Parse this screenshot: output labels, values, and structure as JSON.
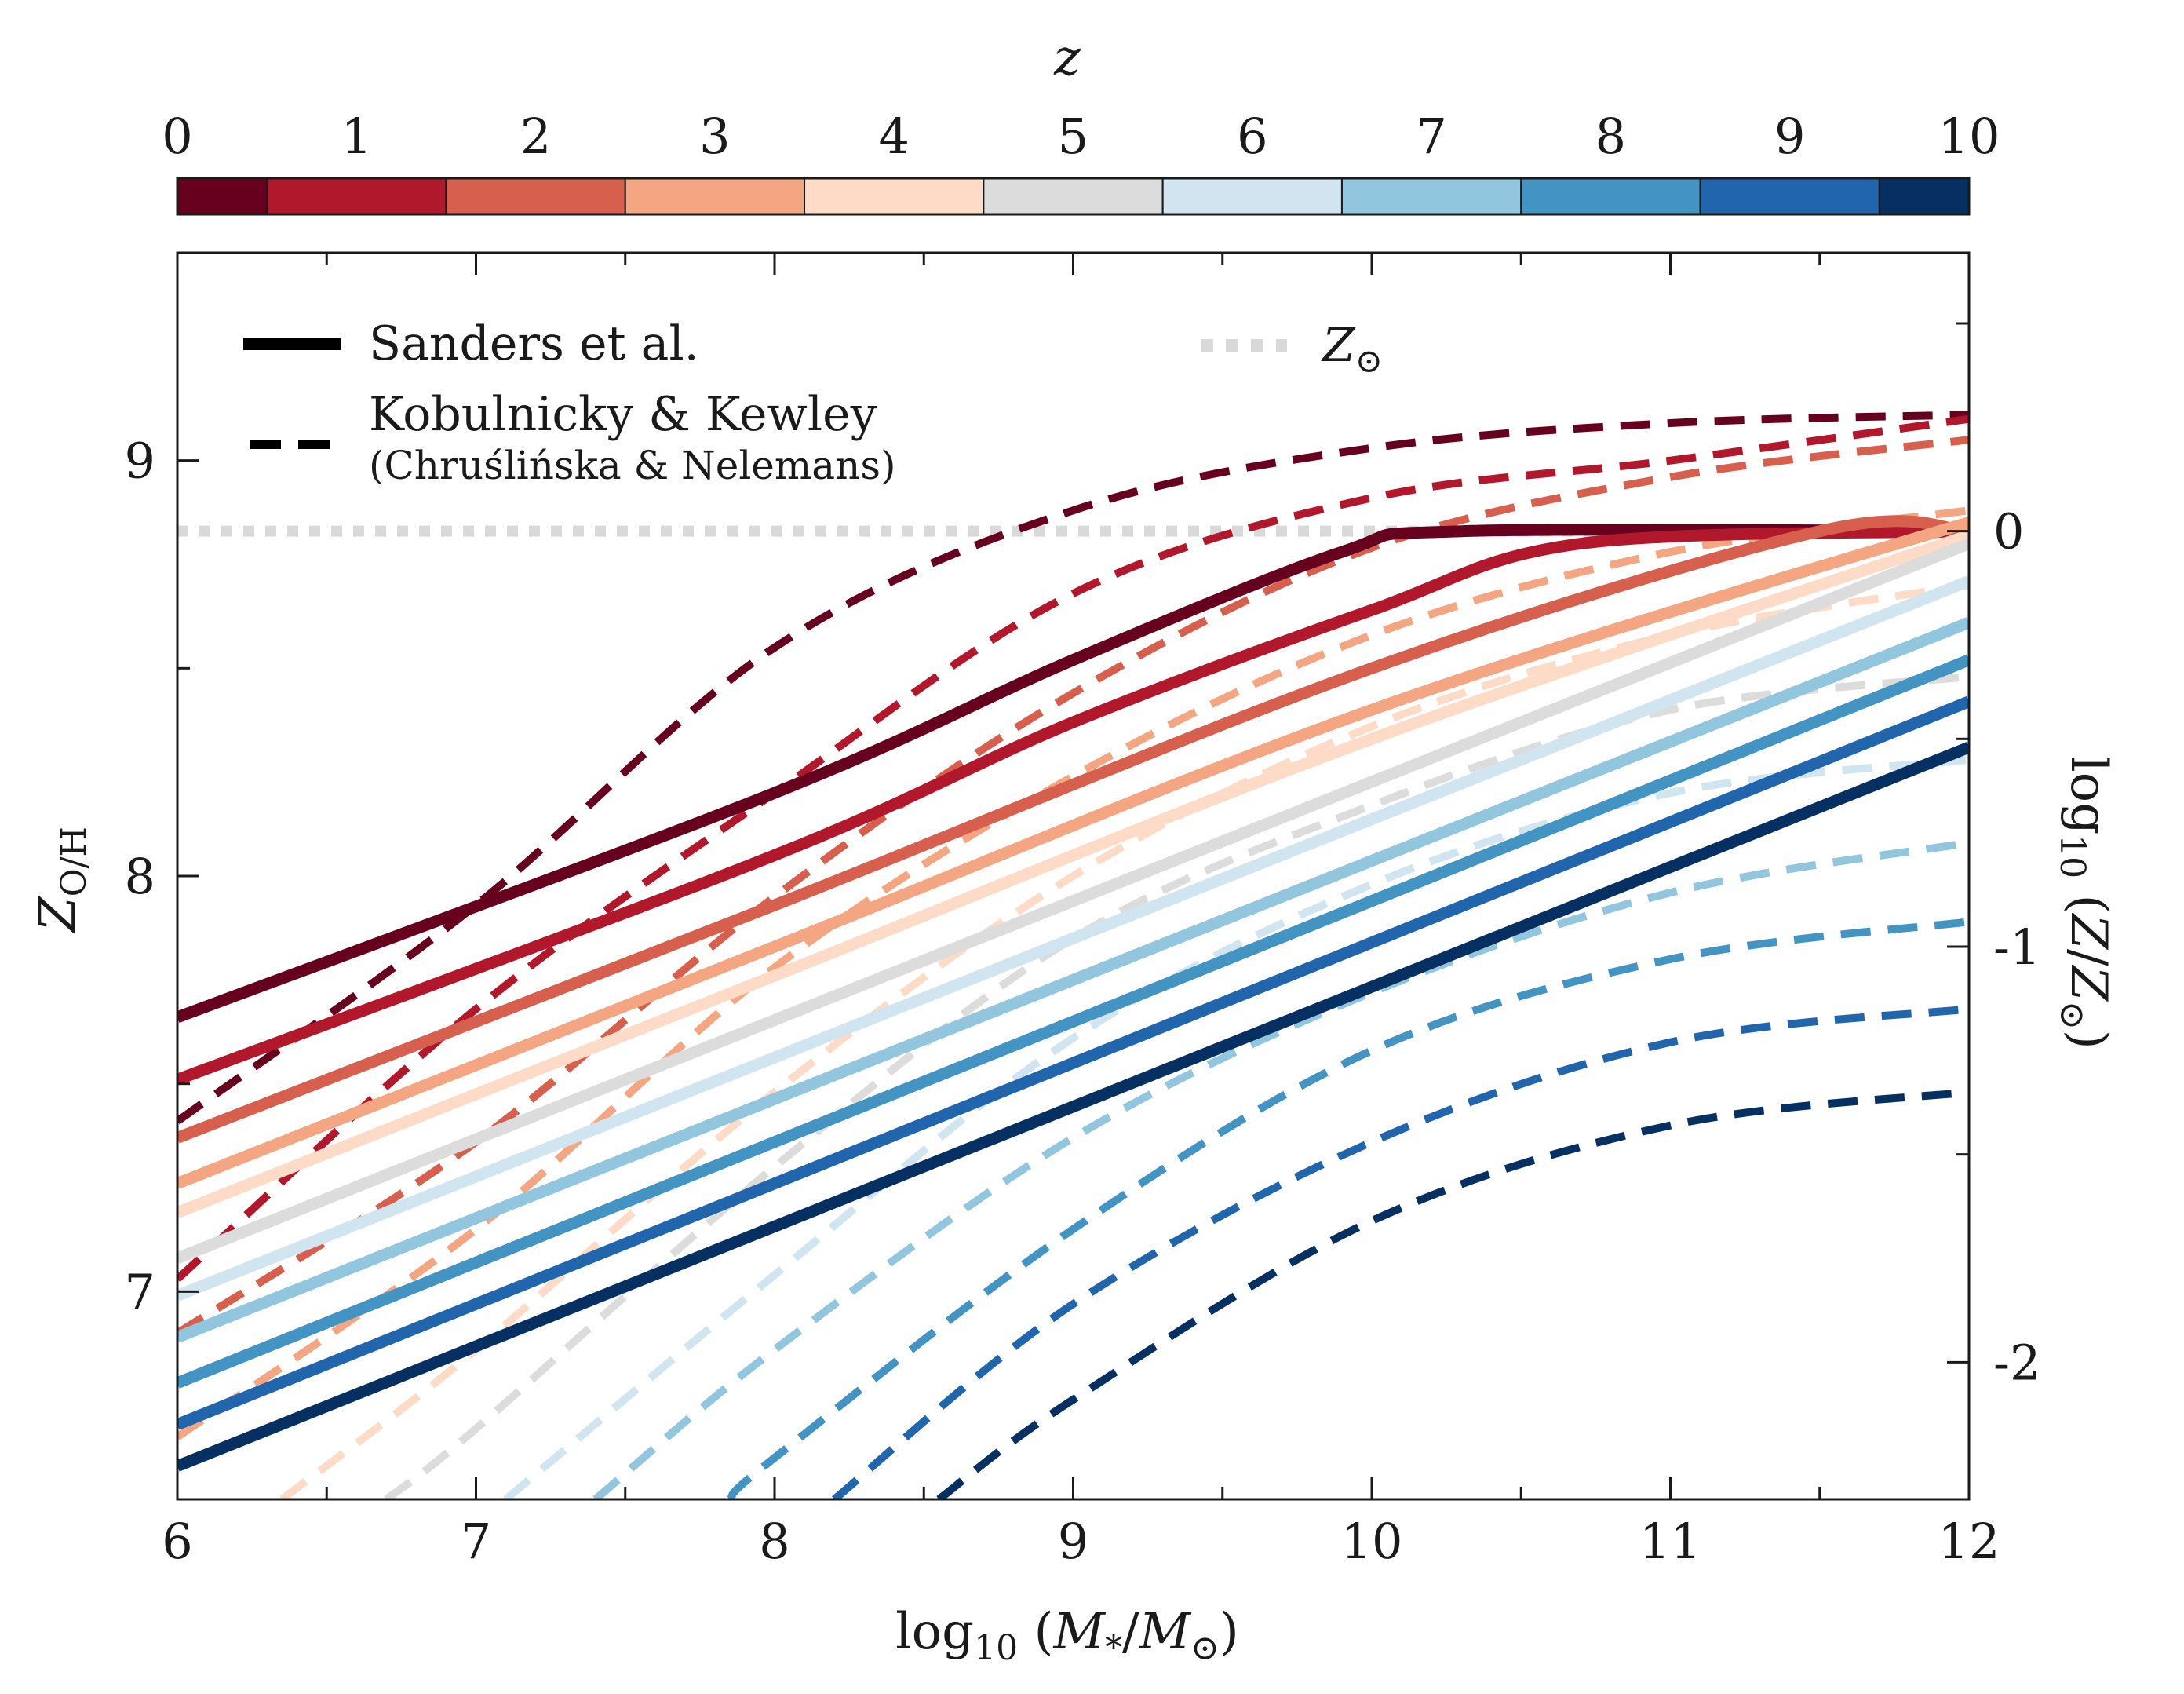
{
  "chart_data": {
    "type": "line",
    "colorbar": {
      "label": "z",
      "ticks": [
        "0",
        "1",
        "2",
        "3",
        "4",
        "5",
        "6",
        "7",
        "8",
        "9",
        "10"
      ],
      "colors": [
        "#67001f",
        "#b2182b",
        "#d6604d",
        "#f4a582",
        "#fddbc7",
        "#dcdcdc",
        "#d1e5f0",
        "#92c5de",
        "#4393c3",
        "#2166ac",
        "#053061"
      ]
    },
    "xlabel": "log10 (M*/M⊙)",
    "ylabel": "Z_O/H",
    "y2label": "log10 (Z/Z⊙)",
    "xlim": [
      6,
      12
    ],
    "ylim": [
      6.5,
      9.5
    ],
    "xticks": [
      "6",
      "7",
      "8",
      "9",
      "10",
      "11",
      "12"
    ],
    "yticks": [
      "7",
      "8",
      "9"
    ],
    "y2ticks": [
      "0",
      "-1",
      "-2"
    ],
    "solar_metallicity": 8.83,
    "legend": {
      "sanders": "Sanders et al.",
      "kobulnicky": "Kobulnicky & Kewley",
      "kobulnicky_sub": "(Chruślińska & Nelemans)",
      "zsun": "Z⊙",
      "position": "top-left"
    },
    "series_sanders": [
      {
        "z": 0,
        "x": [
          6,
          8,
          9,
          9.9,
          10.3,
          12
        ],
        "y": [
          7.66,
          8.2,
          8.52,
          8.78,
          8.83,
          8.83
        ]
      },
      {
        "z": 1,
        "x": [
          6,
          8,
          9,
          10,
          10.7,
          12
        ],
        "y": [
          7.51,
          8.05,
          8.37,
          8.64,
          8.8,
          8.83
        ]
      },
      {
        "z": 2,
        "x": [
          6,
          8,
          10,
          11.5,
          12
        ],
        "y": [
          7.37,
          7.93,
          8.5,
          8.83,
          8.83
        ]
      },
      {
        "z": 3,
        "x": [
          6,
          8,
          10,
          11.9,
          12
        ],
        "y": [
          7.26,
          7.83,
          8.4,
          8.83,
          8.83
        ]
      },
      {
        "z": 4,
        "x": [
          6,
          8,
          10,
          12
        ],
        "y": [
          7.19,
          7.76,
          8.33,
          8.82
        ]
      },
      {
        "z": 5,
        "x": [
          6,
          12
        ],
        "y": [
          7.08,
          8.8
        ]
      },
      {
        "z": 6,
        "x": [
          6,
          12
        ],
        "y": [
          6.99,
          8.71
        ]
      },
      {
        "z": 7,
        "x": [
          6,
          12
        ],
        "y": [
          6.89,
          8.61
        ]
      },
      {
        "z": 8,
        "x": [
          6,
          12
        ],
        "y": [
          6.78,
          8.52
        ]
      },
      {
        "z": 9,
        "x": [
          6,
          12
        ],
        "y": [
          6.68,
          8.42
        ]
      },
      {
        "z": 10,
        "x": [
          6,
          12
        ],
        "y": [
          6.58,
          8.31
        ]
      }
    ],
    "series_kobulnicky": [
      {
        "z": 0,
        "x": [
          6,
          7,
          8,
          9,
          10,
          11,
          12
        ],
        "y": [
          7.41,
          7.93,
          8.55,
          8.88,
          9.03,
          9.09,
          9.11
        ]
      },
      {
        "z": 1,
        "x": [
          6,
          7,
          8,
          9,
          10,
          11,
          12
        ],
        "y": [
          7.03,
          7.68,
          8.2,
          8.68,
          8.91,
          9.0,
          9.1
        ]
      },
      {
        "z": 2,
        "x": [
          6,
          7,
          8,
          9,
          10,
          11,
          12
        ],
        "y": [
          6.9,
          7.36,
          7.95,
          8.44,
          8.79,
          8.96,
          9.05
        ]
      },
      {
        "z": 3,
        "x": [
          6,
          7,
          8,
          9,
          10,
          11,
          12
        ],
        "y": [
          6.65,
          7.15,
          7.78,
          8.24,
          8.58,
          8.78,
          8.88
        ]
      },
      {
        "z": 4,
        "x": [
          6.35,
          7,
          8,
          9,
          10,
          11,
          12
        ],
        "y": [
          6.5,
          6.86,
          7.48,
          8.0,
          8.36,
          8.58,
          8.7
        ]
      },
      {
        "z": 5,
        "x": [
          6.7,
          7,
          8,
          9,
          10,
          11,
          12
        ],
        "y": [
          6.5,
          6.67,
          7.3,
          7.85,
          8.17,
          8.4,
          8.48
        ]
      },
      {
        "z": 6,
        "x": [
          7.1,
          8,
          9,
          10,
          11,
          12
        ],
        "y": [
          6.5,
          7.04,
          7.61,
          7.98,
          8.2,
          8.28
        ]
      },
      {
        "z": 7,
        "x": [
          7.4,
          8,
          9,
          10,
          11,
          12
        ],
        "y": [
          6.5,
          6.86,
          7.37,
          7.72,
          7.96,
          8.08
        ]
      },
      {
        "z": 8,
        "x": [
          7.85,
          8,
          9,
          10,
          11,
          12
        ],
        "y": [
          6.5,
          6.6,
          7.15,
          7.58,
          7.8,
          7.89
        ]
      },
      {
        "z": 9,
        "x": [
          8.2,
          9,
          10,
          11,
          12
        ],
        "y": [
          6.5,
          6.97,
          7.36,
          7.6,
          7.68
        ]
      },
      {
        "z": 10,
        "x": [
          8.55,
          9,
          10,
          11,
          12
        ],
        "y": [
          6.5,
          6.74,
          7.17,
          7.4,
          7.48
        ]
      }
    ]
  }
}
